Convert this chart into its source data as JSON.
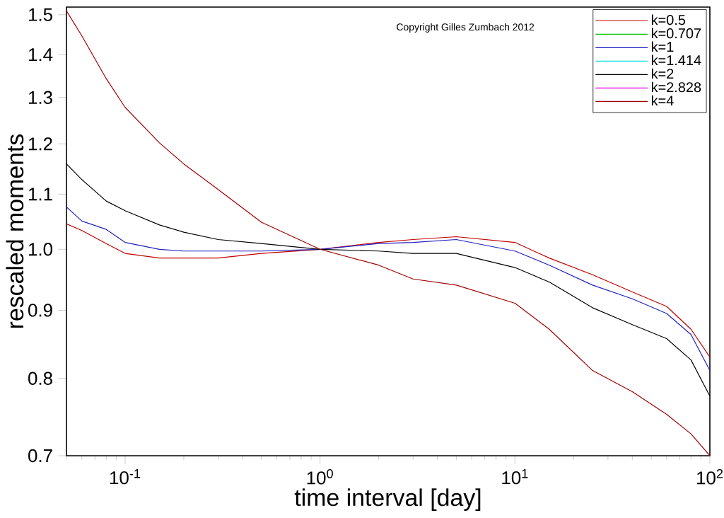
{
  "chart_data": {
    "type": "line",
    "xlabel": "time interval [day]",
    "ylabel": "rescaled moments",
    "annotations": [
      "Copyright Gilles Zumbach 2012"
    ],
    "log": "xy",
    "grid": false,
    "legend": "top right",
    "x": [
      0.05,
      0.06,
      0.08,
      0.1,
      0.15,
      0.2,
      0.3,
      0.5,
      1,
      2,
      3,
      5,
      10,
      15,
      25,
      40,
      60,
      80,
      100
    ],
    "xlim": [
      0.05,
      100
    ],
    "ylim": [
      0.7,
      1.52
    ],
    "xticks": [
      {
        "value": 0.1,
        "label": "10$^{-1}$"
      },
      {
        "value": 1,
        "label": "10$^{0}$"
      },
      {
        "value": 10,
        "label": "10$^{1}$"
      },
      {
        "value": 100,
        "label": "10$^{2}$"
      }
    ],
    "yticks": [
      {
        "value": 0.7,
        "label": "0.7"
      },
      {
        "value": 0.8,
        "label": "0.8"
      },
      {
        "value": 0.9,
        "label": "0.9"
      },
      {
        "value": 1.0,
        "label": "1.0"
      },
      {
        "value": 1.1,
        "label": "1.1"
      },
      {
        "value": 1.2,
        "label": "1.2"
      },
      {
        "value": 1.3,
        "label": "1.3"
      },
      {
        "value": 1.4,
        "label": "1.4"
      },
      {
        "value": 1.5,
        "label": "1.5"
      }
    ],
    "series": [
      {
        "name": "k=0.5",
        "color": "#c00000",
        "values": [
          1.045,
          1.033,
          1.01,
          0.993,
          0.985,
          0.985,
          0.985,
          0.993,
          1.0,
          1.012,
          1.017,
          1.022,
          1.012,
          0.985,
          0.957,
          0.929,
          0.906,
          0.871,
          0.83
        ]
      },
      {
        "name": "k=0.707",
        "color": "#00c000",
        "values": [
          null,
          null,
          null,
          null,
          null,
          null,
          null,
          null,
          null,
          null,
          null,
          null,
          null,
          null,
          null,
          null,
          null,
          null,
          null
        ]
      },
      {
        "name": "k=1",
        "color": "#2020c0",
        "values": [
          1.076,
          1.05,
          1.035,
          1.012,
          1.0,
          0.997,
          0.997,
          0.997,
          1.0,
          1.01,
          1.012,
          1.017,
          0.997,
          0.973,
          0.94,
          0.918,
          0.895,
          0.863,
          0.811
        ]
      },
      {
        "name": "k=1.414",
        "color": "#00e0e0",
        "values": [
          null,
          null,
          null,
          null,
          null,
          null,
          null,
          null,
          null,
          null,
          null,
          null,
          null,
          null,
          null,
          null,
          null,
          null,
          null
        ]
      },
      {
        "name": "k=2",
        "color": "#000000",
        "values": [
          1.159,
          1.128,
          1.087,
          1.069,
          1.043,
          1.03,
          1.017,
          1.01,
          1.0,
          0.997,
          0.993,
          0.993,
          0.969,
          0.945,
          0.904,
          0.878,
          0.857,
          0.826,
          0.776
        ]
      },
      {
        "name": "k=2.828",
        "color": "#e000e0",
        "values": [
          null,
          null,
          null,
          null,
          null,
          null,
          null,
          null,
          null,
          null,
          null,
          null,
          null,
          null,
          null,
          null,
          null,
          null,
          null
        ]
      },
      {
        "name": "k=4",
        "color": "#a00000",
        "values": [
          1.51,
          1.446,
          1.343,
          1.278,
          1.202,
          1.159,
          1.109,
          1.048,
          1.0,
          0.973,
          0.95,
          0.94,
          0.911,
          0.871,
          0.811,
          0.782,
          0.752,
          0.727,
          0.7
        ]
      }
    ]
  }
}
